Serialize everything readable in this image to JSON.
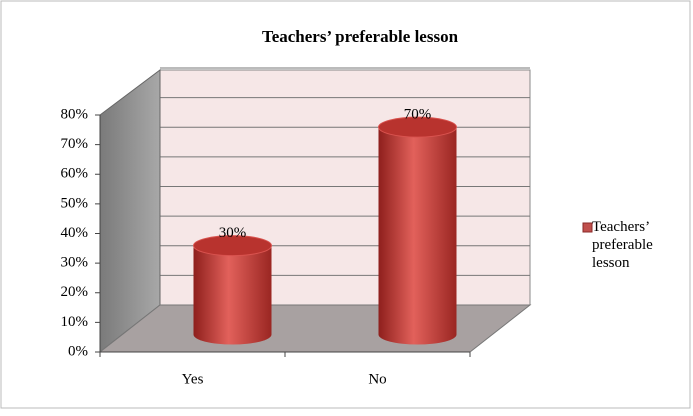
{
  "chart_data": {
    "type": "bar",
    "title": "Teachers’ preferable lesson",
    "categories": [
      "Yes",
      "No"
    ],
    "series": [
      {
        "name": "Teachers’ preferable lesson",
        "color": "#c0504d",
        "values": [
          30,
          70
        ],
        "value_labels": [
          "30%",
          "70%"
        ]
      }
    ],
    "ylim": [
      0,
      80
    ],
    "yticks": [
      {
        "value": 0,
        "label": "0%"
      },
      {
        "value": 10,
        "label": "10%"
      },
      {
        "value": 20,
        "label": "20%"
      },
      {
        "value": 30,
        "label": "30%"
      },
      {
        "value": 40,
        "label": "40%"
      },
      {
        "value": 50,
        "label": "50%"
      },
      {
        "value": 60,
        "label": "60%"
      },
      {
        "value": 70,
        "label": "70%"
      },
      {
        "value": 80,
        "label": "80%"
      }
    ],
    "grid": true,
    "legend": "right"
  }
}
